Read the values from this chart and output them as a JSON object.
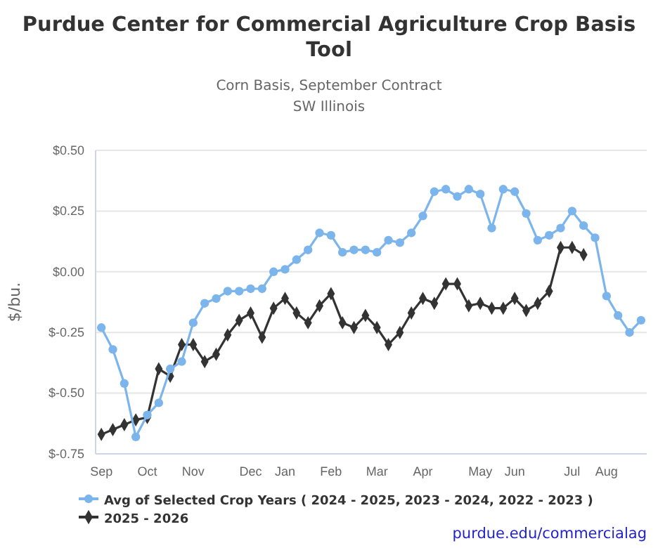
{
  "chart_data": {
    "type": "line",
    "title": "Purdue Center for Commercial Agriculture Crop Basis Tool",
    "subtitle": "Corn Basis, September Contract\nSW Illinois",
    "ylabel": "$/bu.",
    "categories": [
      "Sep",
      null,
      null,
      null,
      "Oct",
      null,
      null,
      null,
      "Nov",
      null,
      null,
      null,
      null,
      "Dec",
      null,
      null,
      "Jan",
      null,
      null,
      null,
      "Feb",
      null,
      null,
      null,
      "Mar",
      null,
      null,
      null,
      "Apr",
      null,
      null,
      null,
      null,
      "May",
      null,
      null,
      "Jun",
      null,
      null,
      null,
      null,
      "Jul",
      null,
      null,
      "Aug",
      null,
      null,
      null
    ],
    "series": [
      {
        "name": "Avg of Selected Crop Years ( 2024 - 2025, 2023 - 2024, 2022 - 2023 )",
        "color": "#7cb5ec",
        "marker": "circle",
        "values": [
          -0.23,
          -0.32,
          -0.46,
          -0.68,
          -0.59,
          -0.54,
          -0.4,
          -0.37,
          -0.21,
          -0.13,
          -0.11,
          -0.08,
          -0.08,
          -0.07,
          -0.07,
          0.0,
          0.01,
          0.05,
          0.09,
          0.16,
          0.15,
          0.08,
          0.09,
          0.09,
          0.08,
          0.13,
          0.12,
          0.16,
          0.23,
          0.33,
          0.34,
          0.31,
          0.34,
          0.32,
          0.18,
          0.34,
          0.33,
          0.24,
          0.13,
          0.15,
          0.18,
          0.25,
          0.19,
          0.14,
          -0.1,
          -0.18,
          -0.25,
          -0.2
        ]
      },
      {
        "name": "2025 - 2026",
        "color": "#333333",
        "marker": "diamond",
        "values": [
          -0.67,
          -0.65,
          -0.63,
          -0.61,
          -0.6,
          -0.4,
          -0.43,
          -0.3,
          -0.3,
          -0.37,
          -0.34,
          -0.26,
          -0.2,
          -0.17,
          -0.27,
          -0.15,
          -0.11,
          -0.17,
          -0.21,
          -0.14,
          -0.09,
          -0.21,
          -0.23,
          -0.18,
          -0.23,
          -0.3,
          -0.25,
          -0.17,
          -0.11,
          -0.13,
          -0.05,
          -0.05,
          -0.14,
          -0.13,
          -0.15,
          -0.15,
          -0.11,
          -0.16,
          -0.13,
          -0.08,
          0.1,
          0.1,
          0.07,
          null,
          null,
          null,
          null,
          null
        ]
      }
    ],
    "ylim": [
      -0.75,
      0.5
    ],
    "yticks": [
      {
        "value": -0.75,
        "label": "$-0.75"
      },
      {
        "value": -0.5,
        "label": "$-0.50"
      },
      {
        "value": -0.25,
        "label": "$-0.25"
      },
      {
        "value": 0,
        "label": "$0.00"
      },
      {
        "value": 0.25,
        "label": "$0.25"
      },
      {
        "value": 0.5,
        "label": "$0.50"
      }
    ],
    "grid": "y",
    "legend": "bottom",
    "annotations": [
      "purdue.edu/commercialag"
    ]
  }
}
